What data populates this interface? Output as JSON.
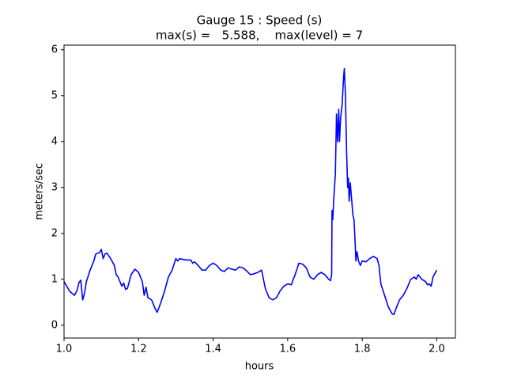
{
  "chart_data": {
    "type": "line",
    "title": "Gauge 15 : Speed (s)",
    "subtitle": "max(s) =   5.588,    max(level) = 7",
    "x_label": "hours",
    "y_label": "meters/sec",
    "xlim": [
      1.0,
      2.05
    ],
    "ylim": [
      -0.28,
      6.1
    ],
    "xticks": [
      {
        "value": 1.0,
        "label": "1.0"
      },
      1.2,
      1.4,
      1.6,
      1.8,
      {
        "value": 2.0,
        "label": "2.0"
      }
    ],
    "yticks": [
      0,
      1,
      2,
      3,
      4,
      5,
      6
    ],
    "grid": false,
    "x": [
      1.0,
      1.015,
      1.028,
      1.035,
      1.04,
      1.045,
      1.05,
      1.055,
      1.06,
      1.07,
      1.08,
      1.085,
      1.095,
      1.1,
      1.105,
      1.11,
      1.115,
      1.125,
      1.135,
      1.14,
      1.145,
      1.15,
      1.155,
      1.16,
      1.165,
      1.17,
      1.18,
      1.19,
      1.2,
      1.205,
      1.21,
      1.215,
      1.22,
      1.225,
      1.235,
      1.245,
      1.25,
      1.26,
      1.27,
      1.28,
      1.29,
      1.3,
      1.305,
      1.31,
      1.32,
      1.33,
      1.34,
      1.345,
      1.35,
      1.36,
      1.37,
      1.38,
      1.39,
      1.4,
      1.41,
      1.42,
      1.43,
      1.44,
      1.45,
      1.46,
      1.47,
      1.48,
      1.49,
      1.5,
      1.51,
      1.52,
      1.53,
      1.54,
      1.55,
      1.56,
      1.57,
      1.58,
      1.59,
      1.6,
      1.61,
      1.615,
      1.62,
      1.63,
      1.64,
      1.65,
      1.66,
      1.67,
      1.68,
      1.69,
      1.7,
      1.71,
      1.715,
      1.718,
      1.719,
      1.721,
      1.724,
      1.728,
      1.731,
      1.734,
      1.737,
      1.739,
      1.742,
      1.746,
      1.75,
      1.752,
      1.755,
      1.758,
      1.761,
      1.763,
      1.765,
      1.768,
      1.771,
      1.775,
      1.778,
      1.781,
      1.783,
      1.786,
      1.79,
      1.795,
      1.8,
      1.81,
      1.82,
      1.83,
      1.84,
      1.845,
      1.85,
      1.86,
      1.87,
      1.88,
      1.885,
      1.89,
      1.9,
      1.91,
      1.92,
      1.93,
      1.94,
      1.945,
      1.95,
      1.96,
      1.97,
      1.975,
      1.98,
      1.985,
      1.99,
      2.0
    ],
    "series": [
      {
        "name": "speed",
        "color": "#0000ff",
        "values": [
          0.95,
          0.74,
          0.65,
          0.76,
          0.93,
          0.98,
          0.55,
          0.7,
          0.95,
          1.2,
          1.4,
          1.55,
          1.58,
          1.65,
          1.45,
          1.55,
          1.57,
          1.45,
          1.3,
          1.1,
          1.05,
          0.95,
          0.85,
          0.92,
          0.78,
          0.8,
          1.1,
          1.22,
          1.15,
          1.05,
          0.95,
          0.65,
          0.83,
          0.6,
          0.55,
          0.35,
          0.28,
          0.5,
          0.75,
          1.05,
          1.2,
          1.45,
          1.4,
          1.45,
          1.43,
          1.42,
          1.42,
          1.35,
          1.38,
          1.3,
          1.2,
          1.2,
          1.3,
          1.35,
          1.3,
          1.2,
          1.17,
          1.25,
          1.22,
          1.2,
          1.27,
          1.25,
          1.18,
          1.1,
          1.12,
          1.15,
          1.2,
          0.8,
          0.6,
          0.55,
          0.6,
          0.75,
          0.85,
          0.9,
          0.88,
          1.0,
          1.1,
          1.35,
          1.33,
          1.25,
          1.05,
          1.0,
          1.1,
          1.15,
          1.1,
          1.0,
          0.97,
          1.1,
          2.5,
          2.3,
          2.8,
          3.3,
          4.6,
          4.0,
          4.7,
          4.0,
          4.5,
          4.8,
          5.4,
          5.588,
          5.0,
          3.8,
          3.0,
          3.2,
          2.7,
          3.1,
          2.8,
          2.4,
          2.3,
          1.8,
          1.4,
          1.6,
          1.4,
          1.3,
          1.4,
          1.38,
          1.45,
          1.5,
          1.45,
          1.3,
          0.9,
          0.65,
          0.4,
          0.25,
          0.23,
          0.35,
          0.55,
          0.65,
          0.8,
          1.0,
          1.05,
          1.0,
          1.1,
          1.0,
          0.95,
          0.88,
          0.9,
          0.85,
          1.05,
          1.2
        ]
      }
    ]
  }
}
